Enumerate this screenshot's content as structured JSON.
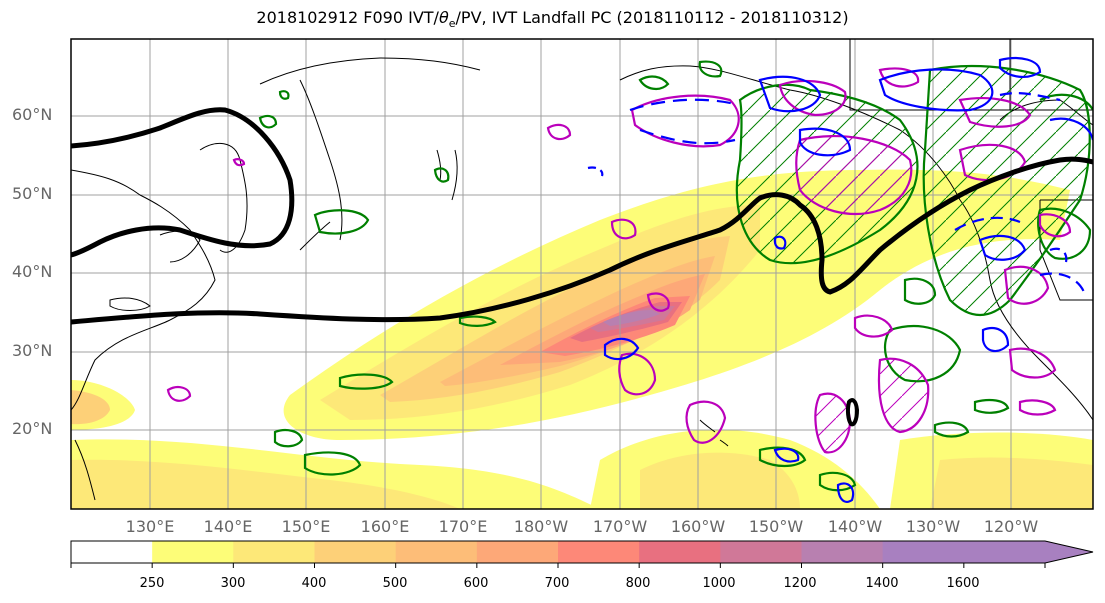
{
  "title_pre": "2018102912 F090 IVT/",
  "title_theta": "θ",
  "title_e": "e",
  "title_post": "/PV, IVT Landfall PC (2018110112 - 2018110312)",
  "lat_labels": [
    "60°N",
    "50°N",
    "40°N",
    "30°N",
    "20°N"
  ],
  "lon_labels": [
    "130°E",
    "140°E",
    "150°E",
    "160°E",
    "170°E",
    "180°W",
    "170°W",
    "160°W",
    "150°W",
    "140°W",
    "130°W",
    "120°W"
  ],
  "colorbar": {
    "ticks": [
      "250",
      "300",
      "400",
      "500",
      "600",
      "700",
      "800",
      "1000",
      "1200",
      "1400",
      "1600"
    ],
    "colors": [
      "#ffffff",
      "#fdfd78",
      "#fde878",
      "#fdd078",
      "#fdbd78",
      "#fda878",
      "#fd8878",
      "#e87080",
      "#d07898",
      "#b880b0",
      "#a880c0",
      "#a880c0"
    ]
  },
  "legend_colors": {
    "pv": "#000000",
    "theta_e": "#0000ff",
    "ivt_green": "#008000",
    "pc": "#bb00bb"
  }
}
